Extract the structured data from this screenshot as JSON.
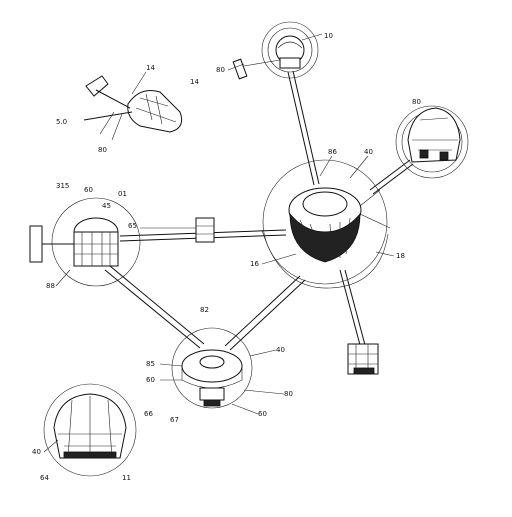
{
  "diagram": {
    "kind": "technical-line-drawing",
    "labels": {
      "l_14": "14",
      "l_10": "10",
      "l_80a": "80",
      "l_14b": "14",
      "l_50": "5.0",
      "l_80b": "80",
      "l_80c": "80",
      "l_86": "86",
      "l_40a": "40",
      "l_315": "315",
      "l_60a": "60",
      "l_01": "01",
      "l_45": "45",
      "l_65": "65",
      "l_16": "16",
      "l_18": "18",
      "l_88": "88",
      "l_82": "82",
      "l_40b": "40",
      "l_85": "85",
      "l_60b": "60",
      "l_80d": "80",
      "l_66": "66",
      "l_67": "67",
      "l_60c": "60",
      "l_40c": "40",
      "l_64": "64",
      "l_11": "11"
    }
  }
}
